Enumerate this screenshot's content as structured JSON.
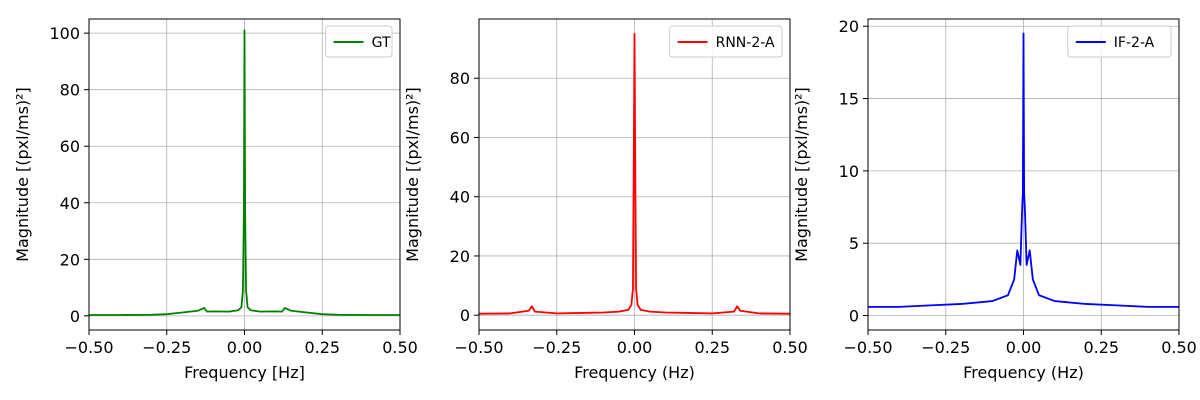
{
  "chart_data": [
    {
      "type": "line",
      "title": "",
      "xlabel": "Frequency [Hz]",
      "ylabel": "Magnitude [(pxl/ms)²]",
      "xlim": [
        -0.5,
        0.5
      ],
      "ylim": [
        -5,
        105
      ],
      "xticks": [
        -0.5,
        -0.25,
        0.0,
        0.25,
        0.5
      ],
      "xtick_labels": [
        "−0.50",
        "−0.25",
        "0.00",
        "0.25",
        "0.50"
      ],
      "yticks": [
        0,
        20,
        40,
        60,
        80,
        100
      ],
      "ytick_labels": [
        "0",
        "20",
        "40",
        "60",
        "80",
        "100"
      ],
      "grid": true,
      "legend_position": "top-right",
      "color": "#008000",
      "series": [
        {
          "name": "GT",
          "color": "#008000",
          "x": [
            -0.5,
            -0.4,
            -0.3,
            -0.25,
            -0.2,
            -0.15,
            -0.13,
            -0.12,
            -0.1,
            -0.05,
            -0.02,
            -0.01,
            -0.005,
            -0.002,
            0.0,
            0.002,
            0.005,
            0.01,
            0.02,
            0.05,
            0.1,
            0.12,
            0.13,
            0.15,
            0.2,
            0.25,
            0.3,
            0.4,
            0.5
          ],
          "y": [
            0.3,
            0.3,
            0.4,
            0.6,
            1.2,
            1.8,
            2.8,
            1.5,
            1.6,
            1.5,
            2.0,
            3.0,
            9.0,
            37.0,
            101.0,
            37.0,
            9.0,
            3.0,
            2.0,
            1.5,
            1.6,
            1.5,
            2.8,
            1.8,
            1.2,
            0.6,
            0.4,
            0.3,
            0.3
          ]
        }
      ]
    },
    {
      "type": "line",
      "title": "",
      "xlabel": "Frequency (Hz)",
      "ylabel": "Magnitude [(pxl/ms)²]",
      "xlim": [
        -0.5,
        0.5
      ],
      "ylim": [
        -5,
        100
      ],
      "xticks": [
        -0.5,
        -0.25,
        0.0,
        0.25,
        0.5
      ],
      "xtick_labels": [
        "−0.50",
        "−0.25",
        "0.00",
        "0.25",
        "0.50"
      ],
      "yticks": [
        0,
        20,
        40,
        60,
        80
      ],
      "ytick_labels": [
        "0",
        "20",
        "40",
        "60",
        "80"
      ],
      "grid": true,
      "legend_position": "top-right",
      "color": "#ff0000",
      "series": [
        {
          "name": "RNN-2-A",
          "color": "#ff0000",
          "x": [
            -0.5,
            -0.4,
            -0.34,
            -0.33,
            -0.32,
            -0.25,
            -0.15,
            -0.1,
            -0.05,
            -0.02,
            -0.01,
            -0.005,
            -0.002,
            0.0,
            0.002,
            0.005,
            0.01,
            0.02,
            0.05,
            0.1,
            0.15,
            0.25,
            0.32,
            0.33,
            0.34,
            0.4,
            0.5
          ],
          "y": [
            0.5,
            0.6,
            1.5,
            3.0,
            1.2,
            0.6,
            0.8,
            0.9,
            1.2,
            1.8,
            3.5,
            9.0,
            58.0,
            95.0,
            58.0,
            9.0,
            3.5,
            1.8,
            1.2,
            0.9,
            0.8,
            0.6,
            1.2,
            3.0,
            1.5,
            0.6,
            0.5
          ]
        }
      ]
    },
    {
      "type": "line",
      "title": "",
      "xlabel": "Frequency (Hz)",
      "ylabel": "Magnitude [(pxl/ms)²]",
      "xlim": [
        -0.5,
        0.5
      ],
      "ylim": [
        -1,
        20.5
      ],
      "xticks": [
        -0.5,
        -0.25,
        0.0,
        0.25,
        0.5
      ],
      "xtick_labels": [
        "−0.50",
        "−0.25",
        "0.00",
        "0.25",
        "0.50"
      ],
      "yticks": [
        0,
        5,
        10,
        15,
        20
      ],
      "ytick_labels": [
        "0",
        "5",
        "10",
        "15",
        "20"
      ],
      "grid": true,
      "legend_position": "top-right",
      "color": "#0000ff",
      "series": [
        {
          "name": "IF-2-A",
          "color": "#0000ff",
          "x": [
            -0.5,
            -0.4,
            -0.3,
            -0.2,
            -0.1,
            -0.05,
            -0.03,
            -0.02,
            -0.01,
            -0.005,
            -0.002,
            0.0,
            0.002,
            0.005,
            0.01,
            0.02,
            0.03,
            0.05,
            0.1,
            0.2,
            0.3,
            0.4,
            0.5
          ],
          "y": [
            0.6,
            0.6,
            0.7,
            0.8,
            1.0,
            1.4,
            2.5,
            4.5,
            3.5,
            7.0,
            8.5,
            19.5,
            8.5,
            7.0,
            3.5,
            4.5,
            2.5,
            1.4,
            1.0,
            0.8,
            0.7,
            0.6,
            0.6
          ]
        }
      ]
    }
  ]
}
